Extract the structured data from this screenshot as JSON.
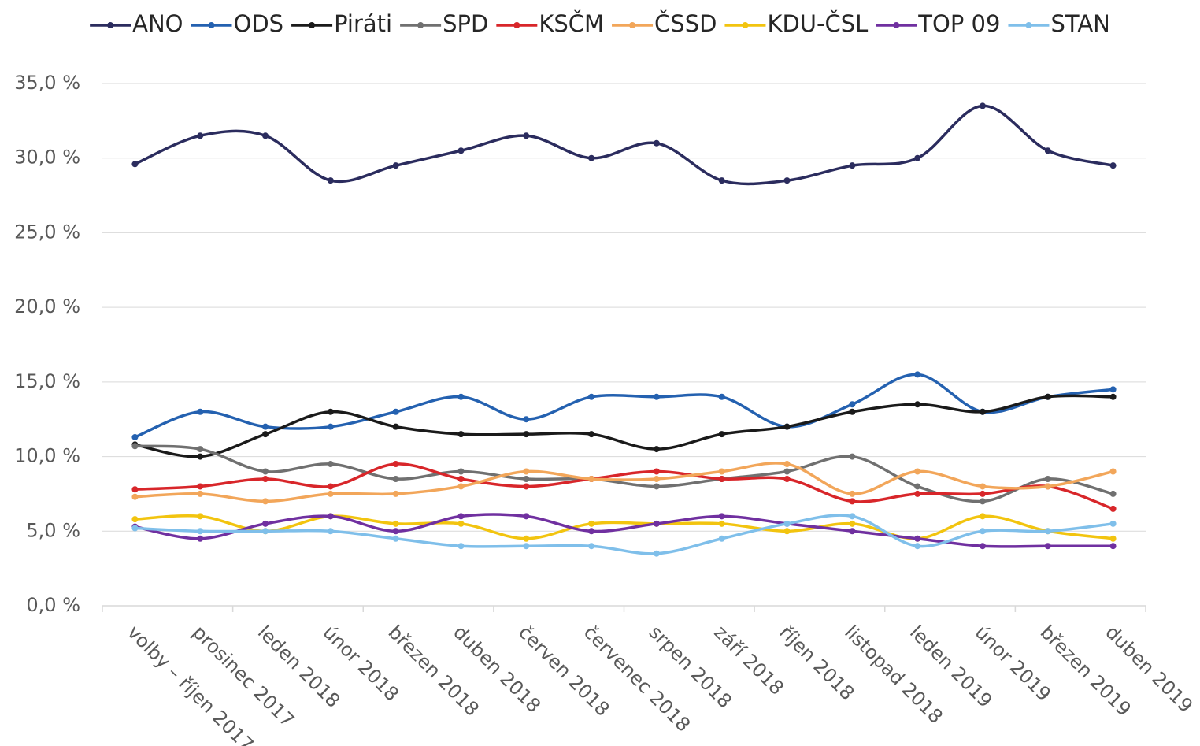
{
  "chart_data": {
    "type": "line",
    "legend": "top",
    "grid": true,
    "smooth": true,
    "categories": [
      "volby – říjen 2017",
      "prosinec 2017",
      "leden 2018",
      "únor 2018",
      "březen 2018",
      "duben 2018",
      "červen 2018",
      "červenec 2018",
      "srpen 2018",
      "září 2018",
      "říjen 2018",
      "listopad 2018",
      "leden 2019",
      "únor 2019",
      "březen 2019",
      "duben 2019"
    ],
    "ylim": [
      0,
      35
    ],
    "yticks": [
      {
        "value": 0,
        "label": "0,0 %"
      },
      {
        "value": 5,
        "label": "5,0 %"
      },
      {
        "value": 10,
        "label": "10,0 %"
      },
      {
        "value": 15,
        "label": "15,0 %"
      },
      {
        "value": 20,
        "label": "20,0 %"
      },
      {
        "value": 25,
        "label": "25,0 %"
      },
      {
        "value": 30,
        "label": "30,0 %"
      },
      {
        "value": 35,
        "label": "35,0 %"
      }
    ],
    "series": [
      {
        "name": "ANO",
        "color": "#2b2c5e",
        "values": [
          29.6,
          31.5,
          31.5,
          28.5,
          29.5,
          30.5,
          31.5,
          30.0,
          31.0,
          28.5,
          28.5,
          29.5,
          30.0,
          33.5,
          30.5,
          29.5
        ]
      },
      {
        "name": "ODS",
        "color": "#2461b0",
        "values": [
          11.3,
          13,
          12,
          12,
          13,
          14,
          12.5,
          14,
          14,
          14,
          12,
          13.5,
          15.5,
          13,
          14,
          14.5
        ]
      },
      {
        "name": "Piráti",
        "color": "#1a1a1a",
        "values": [
          10.8,
          10,
          11.5,
          13,
          12,
          11.5,
          11.5,
          11.5,
          10.5,
          11.5,
          12,
          13,
          13.5,
          13,
          14,
          14
        ]
      },
      {
        "name": "SPD",
        "color": "#707070",
        "values": [
          10.7,
          10.5,
          9,
          9.5,
          8.5,
          9,
          8.5,
          8.5,
          8,
          8.5,
          9,
          10,
          8,
          7,
          8.5,
          7.5
        ]
      },
      {
        "name": "KSČM",
        "color": "#d8262a",
        "values": [
          7.8,
          8,
          8.5,
          8,
          9.5,
          8.5,
          8,
          8.5,
          9,
          8.5,
          8.5,
          7,
          7.5,
          7.5,
          8,
          6.5
        ]
      },
      {
        "name": "ČSSD",
        "color": "#f2a65a",
        "values": [
          7.3,
          7.5,
          7,
          7.5,
          7.5,
          8,
          9,
          8.5,
          8.5,
          9,
          9.5,
          7.5,
          9,
          8,
          8,
          9
        ]
      },
      {
        "name": "KDU-ČSL",
        "color": "#f2c40f",
        "values": [
          5.8,
          6,
          5,
          6,
          5.5,
          5.5,
          4.5,
          5.5,
          5.5,
          5.5,
          5,
          5.5,
          4.5,
          6,
          5,
          4.5
        ]
      },
      {
        "name": "TOP 09",
        "color": "#7030a0",
        "values": [
          5.3,
          4.5,
          5.5,
          6,
          5,
          6,
          6,
          5,
          5.5,
          6,
          5.5,
          5,
          4.5,
          4,
          4,
          4
        ]
      },
      {
        "name": "STAN",
        "color": "#7fbfea",
        "values": [
          5.2,
          5,
          5,
          5,
          4.5,
          4,
          4,
          4,
          3.5,
          4.5,
          5.5,
          6,
          4,
          5,
          5,
          5.5
        ]
      }
    ]
  }
}
